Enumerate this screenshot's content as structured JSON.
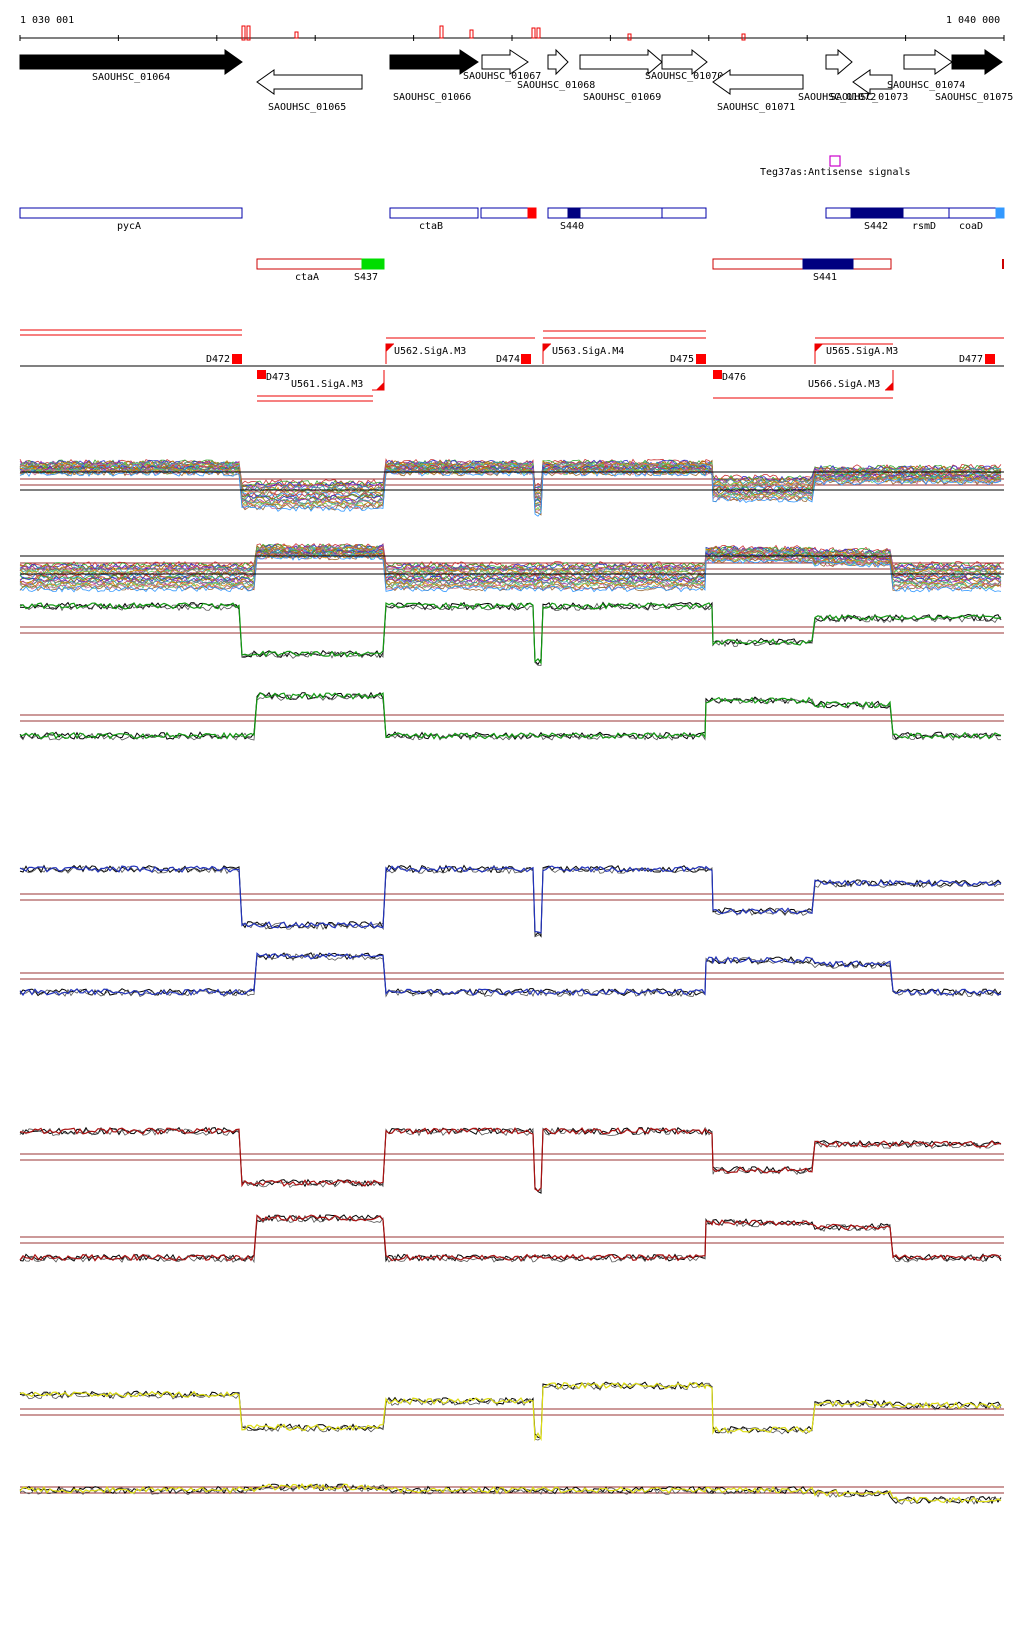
{
  "ruler": {
    "start_label": "1 030 001",
    "end_label": "1 040 000"
  },
  "genes": [
    {
      "label": "SAOUHSC_01064"
    },
    {
      "label": "SAOUHSC_01065"
    },
    {
      "label": "SAOUHSC_01066"
    },
    {
      "label": "SAOUHSC_01067"
    },
    {
      "label": "SAOUHSC_01068"
    },
    {
      "label": "SAOUHSC_01069"
    },
    {
      "label": "SAOUHSC_01070"
    },
    {
      "label": "SAOUHSC_01071"
    },
    {
      "label": "SAOUHSC_01072"
    },
    {
      "label": "SAOUHSC_01073"
    },
    {
      "label": "SAOUHSC_01074"
    },
    {
      "label": "SAOUHSC_01075"
    }
  ],
  "antisense": {
    "label": "Teg37as:Antisense signals",
    "color": "#cc00cc"
  },
  "operons_fwd": [
    {
      "label": "pycA"
    },
    {
      "label": "ctaB"
    },
    {
      "label": "S440"
    },
    {
      "label": "S442"
    },
    {
      "label": "rsmD"
    },
    {
      "label": "coaD"
    }
  ],
  "operons_rev": [
    {
      "label": "ctaA"
    },
    {
      "label": "S437"
    },
    {
      "label": "S441"
    }
  ],
  "promoters": [
    {
      "label": "D472"
    },
    {
      "label": "D473"
    },
    {
      "label": "U561.SigA.M3"
    },
    {
      "label": "U562.SigA.M3"
    },
    {
      "label": "D474"
    },
    {
      "label": "U563.SigA.M4"
    },
    {
      "label": "D475"
    },
    {
      "label": "D476"
    },
    {
      "label": "U565.SigA.M3"
    },
    {
      "label": "U566.SigA.M3"
    },
    {
      "label": "D477"
    }
  ],
  "colors": {
    "gene_fill": "#000000",
    "operon_fwd": "#0000aa",
    "operon_rev": "#cc0000",
    "s437": "#00dd00",
    "dark_blue": "#000080",
    "light_blue": "#3399ff",
    "green": "#119911",
    "blue": "#2233bb",
    "red": "#aa1111",
    "yellow": "#dddd11",
    "threshold": "#993333"
  }
}
